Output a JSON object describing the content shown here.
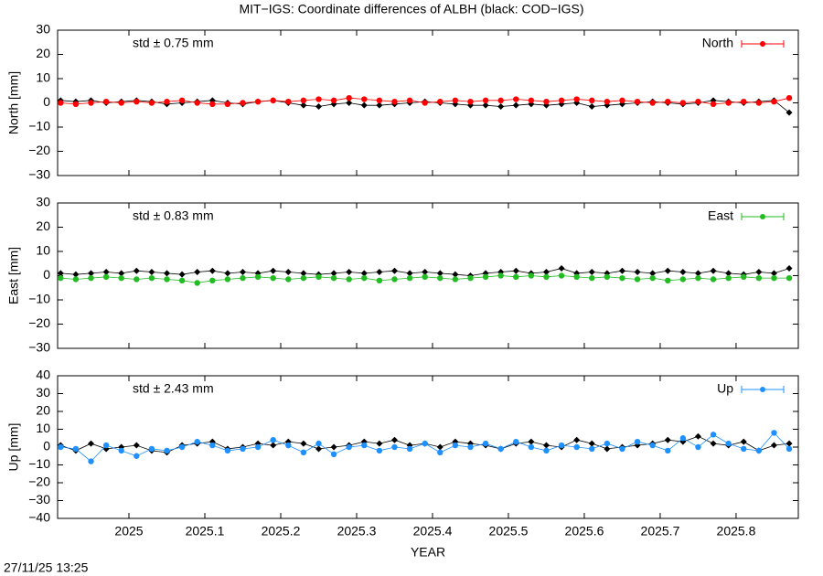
{
  "title": "MIT−IGS: Coordinate differences of ALBH (black: COD−IGS)",
  "timestamp": "27/11/25 13:25",
  "chart_data": [
    {
      "type": "scatter",
      "ylabel": "North [mm]",
      "annotation": "std ± 0.75 mm",
      "legend": "upper right",
      "x": [
        2024.91,
        2024.93,
        2024.95,
        2024.97,
        2024.99,
        2025.01,
        2025.03,
        2025.05,
        2025.07,
        2025.09,
        2025.11,
        2025.13,
        2025.15,
        2025.17,
        2025.19,
        2025.21,
        2025.23,
        2025.25,
        2025.27,
        2025.29,
        2025.31,
        2025.33,
        2025.35,
        2025.37,
        2025.39,
        2025.41,
        2025.43,
        2025.45,
        2025.47,
        2025.49,
        2025.51,
        2025.53,
        2025.55,
        2025.57,
        2025.59,
        2025.61,
        2025.63,
        2025.65,
        2025.67,
        2025.69,
        2025.71,
        2025.73,
        2025.75,
        2025.77,
        2025.79,
        2025.81,
        2025.83,
        2025.85,
        2025.87
      ],
      "xlim": [
        2024.906,
        2025.882
      ],
      "xticks": [
        2025,
        2025.1,
        2025.2,
        2025.3,
        2025.4,
        2025.5,
        2025.6,
        2025.7,
        2025.8
      ],
      "ylim": [
        -30,
        30
      ],
      "yticks": [
        {
          "value": -30,
          "label": "−30"
        },
        {
          "value": -20,
          "label": "−20"
        },
        {
          "value": -10,
          "label": "−10"
        },
        0,
        10,
        20,
        30
      ],
      "series": [
        {
          "color": "#000000",
          "values": [
            1,
            0.5,
            1,
            0,
            0.5,
            1,
            0.5,
            -0.5,
            0,
            0.5,
            1,
            0,
            -0.5,
            0.5,
            1,
            0,
            -1,
            -1.5,
            -0.5,
            0,
            -1,
            -1,
            -0.5,
            0,
            0.5,
            0,
            -0.5,
            -1,
            -1,
            -1.5,
            -1,
            -0.5,
            -1,
            -0.5,
            0,
            -1.5,
            -1,
            -0.5,
            0,
            0.5,
            0,
            -0.5,
            0,
            1,
            0.5,
            0,
            0.5,
            1,
            -4
          ]
        },
        {
          "name": "North",
          "color": "#ff0000",
          "values": [
            0,
            -0.5,
            0,
            0.5,
            0,
            0.5,
            0,
            0.5,
            1,
            0,
            -0.5,
            -0.5,
            0,
            0.5,
            1,
            0.5,
            1,
            1.5,
            1,
            2,
            1.5,
            1,
            0.5,
            1,
            0,
            0.5,
            1,
            0.5,
            1,
            1,
            1.5,
            1,
            0.5,
            1,
            1.5,
            1,
            0.5,
            1,
            0.5,
            0,
            0.5,
            0,
            0.5,
            -0.5,
            0,
            0.5,
            0,
            0.5,
            2
          ]
        }
      ]
    },
    {
      "type": "scatter",
      "ylabel": "East [mm]",
      "annotation": "std ± 0.83 mm",
      "legend": "upper right",
      "x": [
        2024.91,
        2024.93,
        2024.95,
        2024.97,
        2024.99,
        2025.01,
        2025.03,
        2025.05,
        2025.07,
        2025.09,
        2025.11,
        2025.13,
        2025.15,
        2025.17,
        2025.19,
        2025.21,
        2025.23,
        2025.25,
        2025.27,
        2025.29,
        2025.31,
        2025.33,
        2025.35,
        2025.37,
        2025.39,
        2025.41,
        2025.43,
        2025.45,
        2025.47,
        2025.49,
        2025.51,
        2025.53,
        2025.55,
        2025.57,
        2025.59,
        2025.61,
        2025.63,
        2025.65,
        2025.67,
        2025.69,
        2025.71,
        2025.73,
        2025.75,
        2025.77,
        2025.79,
        2025.81,
        2025.83,
        2025.85,
        2025.87
      ],
      "xlim": [
        2024.906,
        2025.882
      ],
      "xticks": [
        2025,
        2025.1,
        2025.2,
        2025.3,
        2025.4,
        2025.5,
        2025.6,
        2025.7,
        2025.8
      ],
      "ylim": [
        -30,
        30
      ],
      "yticks": [
        {
          "value": -30,
          "label": "−30"
        },
        {
          "value": -20,
          "label": "−20"
        },
        {
          "value": -10,
          "label": "−10"
        },
        0,
        10,
        20,
        30
      ],
      "series": [
        {
          "color": "#000000",
          "values": [
            1,
            0.5,
            1,
            1.5,
            1,
            2,
            1.5,
            1,
            0.5,
            1.5,
            2,
            1,
            1.5,
            1,
            2,
            1.5,
            1,
            0.5,
            1,
            1.5,
            1,
            1.5,
            2,
            1,
            1.5,
            1,
            0.5,
            0,
            1,
            1.5,
            2,
            1,
            1.5,
            3,
            1,
            1.5,
            1,
            2,
            1.5,
            1,
            2,
            1.5,
            1,
            2,
            1,
            0.5,
            1.5,
            1,
            3
          ]
        },
        {
          "name": "East",
          "color": "#22bb22",
          "values": [
            -1,
            -1.5,
            -1,
            -0.5,
            -1,
            -1.5,
            -1,
            -1.5,
            -2,
            -3,
            -2,
            -1.5,
            -1,
            -0.5,
            -1,
            -1.5,
            -1,
            -0.5,
            -1,
            -1.5,
            -1,
            -2,
            -1.5,
            -1,
            -0.5,
            -1,
            -1.5,
            -1,
            -0.5,
            0,
            -0.5,
            0,
            -0.5,
            0,
            -0.5,
            -1,
            -0.5,
            -1,
            -1.5,
            -1,
            -2,
            -1.5,
            -1,
            -1.5,
            -1,
            -0.5,
            -1,
            -1,
            -1
          ]
        }
      ]
    },
    {
      "type": "scatter",
      "ylabel": "Up [mm]",
      "xlabel": "YEAR",
      "annotation": "std ± 2.43 mm",
      "legend": "upper right",
      "x": [
        2024.91,
        2024.93,
        2024.95,
        2024.97,
        2024.99,
        2025.01,
        2025.03,
        2025.05,
        2025.07,
        2025.09,
        2025.11,
        2025.13,
        2025.15,
        2025.17,
        2025.19,
        2025.21,
        2025.23,
        2025.25,
        2025.27,
        2025.29,
        2025.31,
        2025.33,
        2025.35,
        2025.37,
        2025.39,
        2025.41,
        2025.43,
        2025.45,
        2025.47,
        2025.49,
        2025.51,
        2025.53,
        2025.55,
        2025.57,
        2025.59,
        2025.61,
        2025.63,
        2025.65,
        2025.67,
        2025.69,
        2025.71,
        2025.73,
        2025.75,
        2025.77,
        2025.79,
        2025.81,
        2025.83,
        2025.85,
        2025.87
      ],
      "xlim": [
        2024.906,
        2025.882
      ],
      "xticks": [
        2025,
        2025.1,
        2025.2,
        2025.3,
        2025.4,
        2025.5,
        2025.6,
        2025.7,
        2025.8
      ],
      "ylim": [
        -40,
        40
      ],
      "yticks": [
        {
          "value": -40,
          "label": "−40"
        },
        {
          "value": -30,
          "label": "−30"
        },
        {
          "value": -20,
          "label": "−20"
        },
        {
          "value": -10,
          "label": "−10"
        },
        0,
        10,
        20,
        30,
        40
      ],
      "series": [
        {
          "color": "#000000",
          "values": [
            1,
            -2,
            2,
            -1,
            0,
            1,
            -2,
            -3,
            1,
            2,
            3,
            -1,
            0,
            2,
            1,
            3,
            2,
            -1,
            0,
            1,
            3,
            2,
            4,
            1,
            2,
            0,
            3,
            2,
            1,
            -1,
            2,
            3,
            1,
            0,
            4,
            2,
            -1,
            0,
            1,
            2,
            4,
            3,
            6,
            2,
            1,
            3,
            -2,
            1,
            2
          ]
        },
        {
          "name": "Up",
          "color": "#1e90ff",
          "values": [
            0,
            -1,
            -8,
            1,
            -2,
            -5,
            -1,
            -2,
            0,
            3,
            1,
            -2,
            -1,
            0,
            4,
            1,
            -3,
            2,
            -4,
            0,
            1,
            -2,
            0,
            -1,
            2,
            -3,
            1,
            0,
            2,
            -1,
            3,
            0,
            -2,
            1,
            0,
            -1,
            2,
            -1,
            3,
            1,
            -2,
            5,
            0,
            7,
            2,
            -1,
            -2,
            8,
            -1
          ]
        }
      ]
    }
  ]
}
